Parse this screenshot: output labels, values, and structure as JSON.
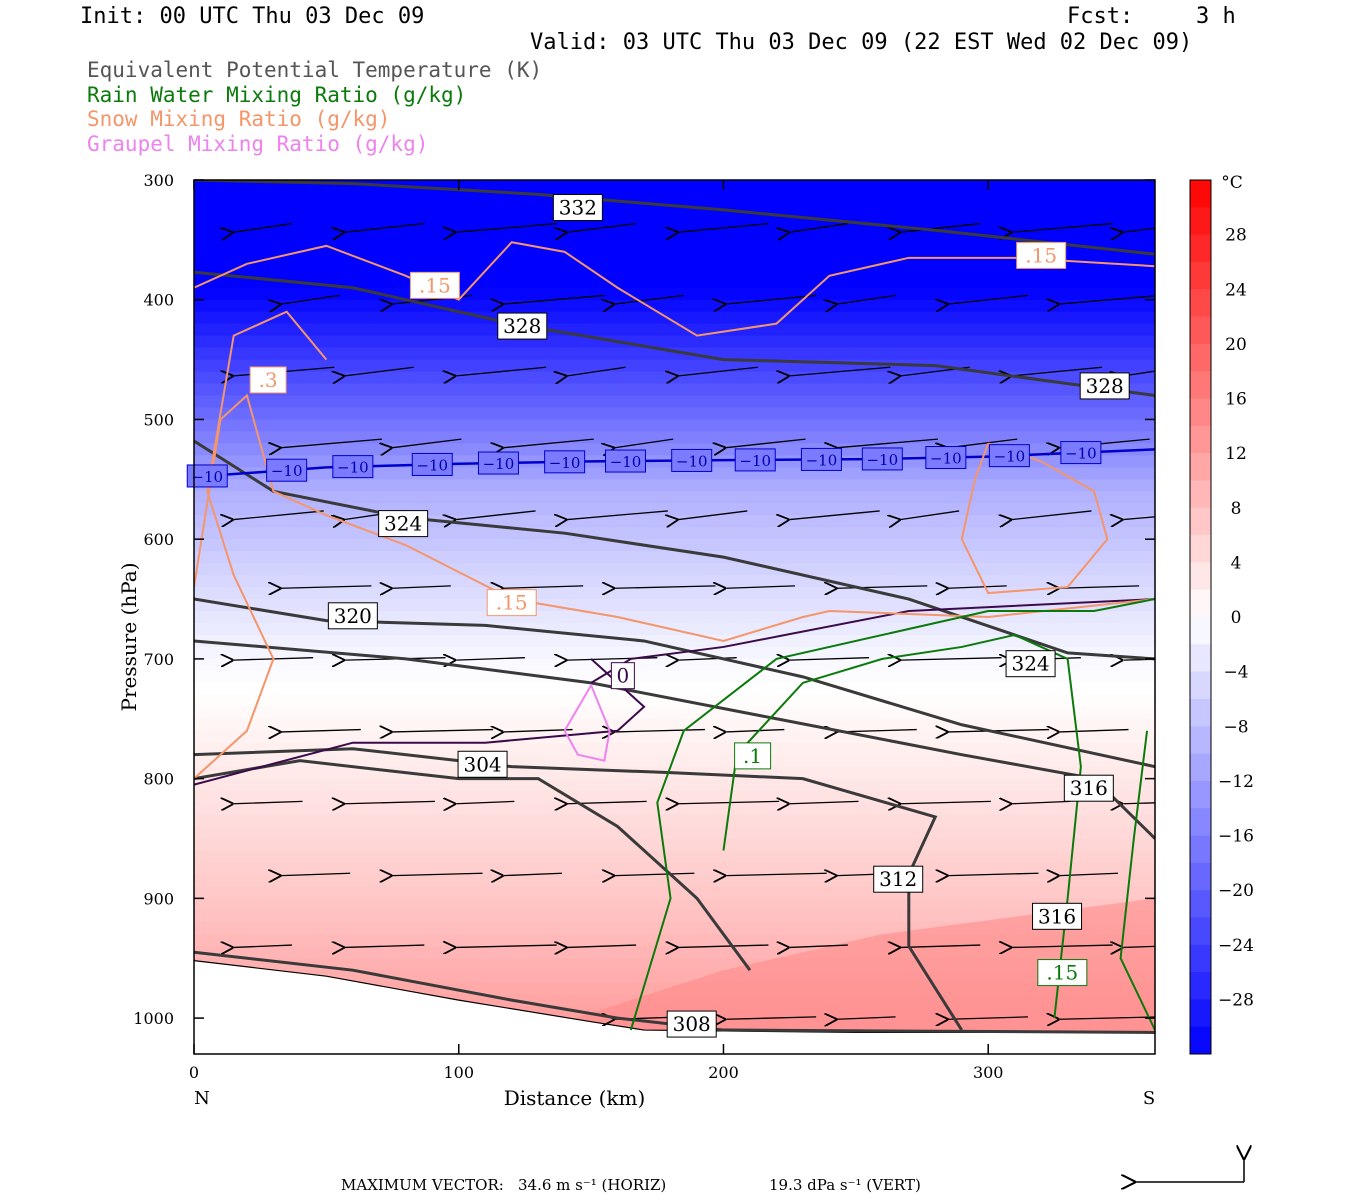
{
  "header": {
    "init": "Init: 00 UTC Thu 03 Dec 09",
    "fcst_label": "Fcst:",
    "fcst_value": "3 h",
    "valid": "Valid: 03 UTC Thu 03 Dec 09 (22 EST Wed 02 Dec 09)"
  },
  "fields": [
    {
      "label": "Equivalent Potential Temperature (K)",
      "color": "#555555"
    },
    {
      "label": "Rain Water Mixing Ratio (g/kg)",
      "color": "#0a7a0a"
    },
    {
      "label": "Snow Mixing Ratio (g/kg)",
      "color": "#f4956a"
    },
    {
      "label": "Graupel Mixing Ratio (g/kg)",
      "color": "#ee82ee"
    }
  ],
  "footer": {
    "max_vector_label": "MAXIMUM VECTOR:",
    "horiz": "34.6 m s⁻¹ (HORIZ)",
    "vert": "19.3 dPa s⁻¹ (VERT)"
  },
  "chart_data": {
    "type": "heatmap",
    "description_fields": "cross-section; shaded temperature, contours of theta-e, rain, snow, graupel; wind vectors",
    "xlabel": "Distance (km)",
    "ylabel": "Pressure (hPa)",
    "xlim": [
      0,
      363
    ],
    "ylim": [
      1030,
      300
    ],
    "x_ticks": [
      0,
      100,
      200,
      300
    ],
    "y_ticks": [
      300,
      400,
      500,
      600,
      700,
      800,
      900,
      1000
    ],
    "x_end_labels": {
      "left": "N",
      "right": "S"
    },
    "colorbar": {
      "unit": "°C",
      "tick_labels": [
        "28",
        "24",
        "20",
        "16",
        "12",
        "8",
        "4",
        "0",
        "−4",
        "−8",
        "−12",
        "−16",
        "−20",
        "−24",
        "−28"
      ],
      "tick_values": [
        28,
        24,
        20,
        16,
        12,
        8,
        4,
        0,
        -4,
        -8,
        -12,
        -16,
        -20,
        -24,
        -28
      ],
      "range": [
        -32,
        32
      ]
    },
    "temperature_levels": [
      {
        "p": 300,
        "t": -42
      },
      {
        "p": 400,
        "t": -31
      },
      {
        "p": 500,
        "t": -18
      },
      {
        "p": 560,
        "t": -10
      },
      {
        "p": 620,
        "t": -6
      },
      {
        "p": 700,
        "t": -1
      },
      {
        "p": 800,
        "t": 3
      },
      {
        "p": 900,
        "t": 7
      },
      {
        "p": 1000,
        "t": 12
      }
    ],
    "theta_e_contours": [
      {
        "level": 332,
        "points": [
          [
            0,
            300
          ],
          [
            60,
            303
          ],
          [
            130,
            312
          ],
          [
            200,
            325
          ],
          [
            280,
            342
          ],
          [
            363,
            362
          ]
        ],
        "label": {
          "text": "332",
          "x": 145,
          "p": 323
        }
      },
      {
        "level": 328,
        "points": [
          [
            0,
            377
          ],
          [
            60,
            390
          ],
          [
            120,
            420
          ],
          [
            200,
            450
          ],
          [
            280,
            455
          ],
          [
            363,
            480
          ]
        ],
        "label": {
          "text": "328",
          "x": 124,
          "p": 422
        }
      },
      {
        "level": 328,
        "points": [],
        "label": {
          "text": "328",
          "x": 344,
          "p": 472
        }
      },
      {
        "level": 324,
        "points": [
          [
            0,
            518
          ],
          [
            30,
            560
          ],
          [
            80,
            582
          ],
          [
            140,
            595
          ],
          [
            200,
            615
          ],
          [
            270,
            650
          ],
          [
            330,
            695
          ],
          [
            363,
            700
          ]
        ],
        "label": {
          "text": "324",
          "x": 79,
          "p": 587
        }
      },
      {
        "level": 324,
        "points": [],
        "label": {
          "text": "324",
          "x": 316,
          "p": 704
        }
      },
      {
        "level": 320,
        "points": [
          [
            0,
            650
          ],
          [
            50,
            668
          ],
          [
            110,
            672
          ],
          [
            170,
            685
          ],
          [
            230,
            715
          ],
          [
            290,
            755
          ],
          [
            363,
            790
          ]
        ],
        "label": {
          "text": "320",
          "x": 60,
          "p": 664
        }
      },
      {
        "level": 316,
        "points": [
          [
            0,
            685
          ],
          [
            80,
            700
          ],
          [
            150,
            720
          ],
          [
            220,
            750
          ],
          [
            290,
            780
          ],
          [
            340,
            800
          ],
          [
            363,
            850
          ]
        ],
        "label": {
          "text": "316",
          "x": 338,
          "p": 808
        }
      },
      {
        "level": 316,
        "points": [],
        "label": {
          "text": "316",
          "x": 326,
          "p": 915
        }
      },
      {
        "level": 312,
        "points": [
          [
            0,
            780
          ],
          [
            60,
            775
          ],
          [
            120,
            790
          ],
          [
            180,
            795
          ],
          [
            230,
            800
          ],
          [
            280,
            832
          ],
          [
            270,
            880
          ],
          [
            270,
            940
          ],
          [
            290,
            1010
          ]
        ],
        "label": {
          "text": "312",
          "x": 266,
          "p": 884
        }
      },
      {
        "level": 308,
        "points": [
          [
            0,
            945
          ],
          [
            60,
            960
          ],
          [
            120,
            985
          ],
          [
            160,
            1000
          ],
          [
            200,
            1010
          ],
          [
            363,
            1012
          ]
        ],
        "label": {
          "text": "308",
          "x": 188,
          "p": 1005
        }
      },
      {
        "level": 304,
        "points": [
          [
            0,
            800
          ],
          [
            40,
            785
          ],
          [
            100,
            800
          ],
          [
            130,
            800
          ],
          [
            160,
            840
          ],
          [
            190,
            900
          ],
          [
            210,
            960
          ]
        ],
        "label": {
          "text": "304",
          "x": 109,
          "p": 788
        }
      }
    ],
    "freezing_level_contour": {
      "level": 0,
      "label": {
        "text": "0",
        "x": 162,
        "p": 714
      }
    },
    "isotherm_minus10": {
      "level": -10,
      "points": [
        [
          0,
          548
        ],
        [
          50,
          540
        ],
        [
          100,
          537
        ],
        [
          150,
          535
        ],
        [
          200,
          534
        ],
        [
          260,
          533
        ],
        [
          300,
          531
        ],
        [
          363,
          525
        ]
      ],
      "label_text": "−10"
    },
    "snow_contours": [
      {
        "level": 0.15,
        "label": {
          "text": ".15",
          "x": 91,
          "p": 388
        }
      },
      {
        "level": 0.15,
        "label": {
          "text": ".15",
          "x": 320,
          "p": 363
        }
      },
      {
        "level": 0.3,
        "label": {
          "text": ".3",
          "x": 28,
          "p": 467
        }
      },
      {
        "level": 0.15,
        "label": {
          "text": ".15",
          "x": 120,
          "p": 653
        }
      }
    ],
    "rain_contours": [
      {
        "level": 0.1,
        "label": {
          "text": ".1",
          "x": 211,
          "p": 781
        }
      },
      {
        "level": 0.15,
        "label": {
          "text": ".15",
          "x": 328,
          "p": 962
        }
      }
    ]
  }
}
